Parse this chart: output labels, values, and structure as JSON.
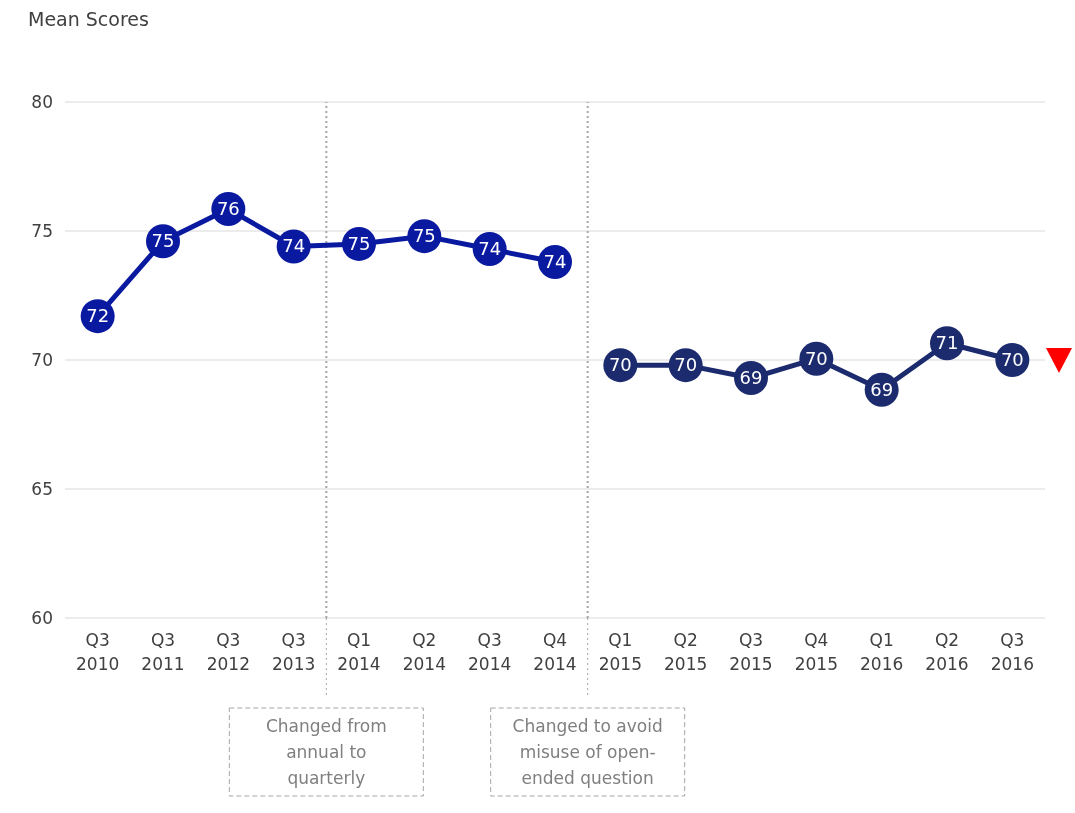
{
  "chart_data": {
    "type": "line",
    "ylabel": "Mean Scores",
    "categories": [
      "Q3 2010",
      "Q3 2011",
      "Q3 2012",
      "Q3 2013",
      "Q1 2014",
      "Q2 2014",
      "Q3 2014",
      "Q4 2014",
      "Q1 2015",
      "Q2 2015",
      "Q3 2015",
      "Q4 2015",
      "Q1 2016",
      "Q2 2016",
      "Q3 2016"
    ],
    "series": [
      {
        "color": "#0a1aa0",
        "values": [
          71.7,
          74.6,
          75.85,
          74.4,
          74.5,
          74.8,
          74.3,
          73.8,
          null,
          null,
          null,
          null,
          null,
          null,
          null
        ],
        "value_labels": [
          "72",
          "75",
          "76",
          "74",
          "75",
          "75",
          "74",
          "74",
          null,
          null,
          null,
          null,
          null,
          null,
          null
        ]
      },
      {
        "color": "#1c2a6e",
        "values": [
          null,
          null,
          null,
          null,
          null,
          null,
          null,
          null,
          69.8,
          69.8,
          69.3,
          70.05,
          68.85,
          70.65,
          70.0
        ],
        "value_labels": [
          null,
          null,
          null,
          null,
          null,
          null,
          null,
          null,
          "70",
          "70",
          "69",
          "70",
          "69",
          "71",
          "70"
        ]
      }
    ],
    "ylim": [
      60,
      80
    ],
    "yticks": [
      60,
      65,
      70,
      75,
      80
    ],
    "grid": "y",
    "marker": "circle",
    "line_style": "solid",
    "annotations": [
      "Changed from annual to quarterly",
      "Changed to avoid misuse of open-ended question"
    ]
  }
}
